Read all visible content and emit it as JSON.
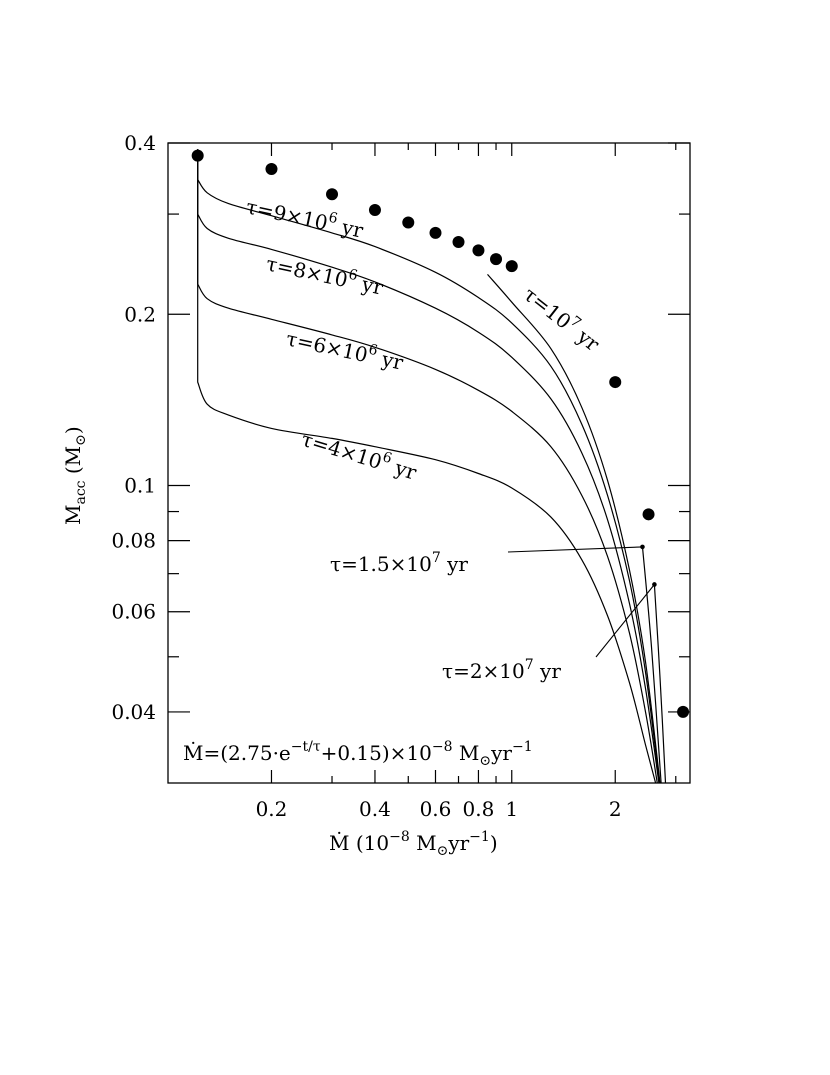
{
  "chart_data": {
    "type": "line",
    "xscale": "log",
    "yscale": "log",
    "xlim": [
      0.1,
      3.3
    ],
    "ylim": [
      0.03,
      0.4
    ],
    "xlabel": {
      "main": "Ṁ  (10",
      "exp": "−8",
      "mid": " M",
      "sub": "⊙",
      "yr": "yr",
      "exp2": "−1",
      "close": ")"
    },
    "ylabel": {
      "main": "M",
      "sub": "acc",
      "unit": "  (M",
      "unit_sub": "⊙",
      "close": ")"
    },
    "x_tick_labels": [
      {
        "value": 0.2,
        "label": "0.2"
      },
      {
        "value": 0.4,
        "label": "0.4"
      },
      {
        "value": 0.6,
        "label": "0.6"
      },
      {
        "value": 0.8,
        "label": "0.8"
      },
      {
        "value": 1,
        "label": "1"
      },
      {
        "value": 2,
        "label": "2"
      }
    ],
    "x_minor_ticks": [
      0.3,
      0.5,
      0.7,
      0.9,
      3
    ],
    "y_tick_labels": [
      {
        "value": 0.4,
        "label": "0.4"
      },
      {
        "value": 0.2,
        "label": "0.2"
      },
      {
        "value": 0.1,
        "label": "0.1"
      },
      {
        "value": 0.08,
        "label": "0.08"
      },
      {
        "value": 0.06,
        "label": "0.06"
      },
      {
        "value": 0.04,
        "label": "0.04"
      }
    ],
    "y_minor_ticks": [
      0.3,
      0.09,
      0.07,
      0.05
    ],
    "formula": {
      "pre": "Ṁ=(2.75·e",
      "exp": "−t/τ",
      "post": "+0.15)×10",
      "exp2": "−8",
      "unit": " M",
      "unit_sub": "⊙",
      "yr": "yr",
      "exp3": "−1"
    },
    "points": [
      {
        "x": 0.122,
        "y": 0.38
      },
      {
        "x": 0.2,
        "y": 0.36
      },
      {
        "x": 0.3,
        "y": 0.325
      },
      {
        "x": 0.4,
        "y": 0.305
      },
      {
        "x": 0.5,
        "y": 0.29
      },
      {
        "x": 0.6,
        "y": 0.278
      },
      {
        "x": 0.7,
        "y": 0.268
      },
      {
        "x": 0.8,
        "y": 0.259
      },
      {
        "x": 0.9,
        "y": 0.25
      },
      {
        "x": 1.0,
        "y": 0.243
      },
      {
        "x": 2.0,
        "y": 0.152
      },
      {
        "x": 2.5,
        "y": 0.089
      },
      {
        "x": 3.15,
        "y": 0.04
      }
    ],
    "series": [
      {
        "tau": "τ=4×10⁶ yr",
        "x": [
          0.122,
          0.122,
          0.13,
          0.15,
          0.2,
          0.3,
          0.4,
          0.6,
          0.8,
          1.0,
          1.3,
          1.6,
          1.9,
          2.2,
          2.45,
          2.62
        ],
        "y": [
          0.39,
          0.152,
          0.139,
          0.133,
          0.126,
          0.121,
          0.117,
          0.111,
          0.105,
          0.099,
          0.088,
          0.074,
          0.059,
          0.045,
          0.035,
          0.03
        ]
      },
      {
        "tau": "τ=6×10⁶ yr",
        "x": [
          0.122,
          0.122,
          0.13,
          0.15,
          0.2,
          0.3,
          0.4,
          0.6,
          0.8,
          1.0,
          1.3,
          1.6,
          1.9,
          2.2,
          2.45,
          2.65
        ],
        "y": [
          0.39,
          0.226,
          0.213,
          0.205,
          0.196,
          0.184,
          0.175,
          0.16,
          0.147,
          0.135,
          0.117,
          0.096,
          0.075,
          0.055,
          0.04,
          0.03
        ]
      },
      {
        "tau": "τ=8×10⁶ yr",
        "x": [
          0.122,
          0.122,
          0.13,
          0.15,
          0.2,
          0.3,
          0.4,
          0.6,
          0.8,
          1.0,
          1.3,
          1.6,
          1.9,
          2.2,
          2.45,
          2.68
        ],
        "y": [
          0.39,
          0.3,
          0.283,
          0.272,
          0.26,
          0.242,
          0.228,
          0.205,
          0.186,
          0.168,
          0.142,
          0.114,
          0.087,
          0.062,
          0.044,
          0.03
        ]
      },
      {
        "tau": "τ=9×10⁶ yr",
        "x": [
          0.122,
          0.122,
          0.13,
          0.15,
          0.2,
          0.3,
          0.4,
          0.6,
          0.8,
          1.0,
          1.3,
          1.6,
          1.9,
          2.2,
          2.45,
          2.69
        ],
        "y": [
          0.39,
          0.345,
          0.327,
          0.313,
          0.298,
          0.278,
          0.263,
          0.237,
          0.214,
          0.193,
          0.162,
          0.128,
          0.096,
          0.068,
          0.047,
          0.03
        ]
      },
      {
        "tau": "τ=10⁷ yr",
        "x": [
          0.85,
          1.0,
          1.3,
          1.6,
          1.9,
          2.2,
          2.45,
          2.7
        ],
        "y": [
          0.235,
          0.21,
          0.174,
          0.137,
          0.102,
          0.071,
          0.049,
          0.03
        ]
      },
      {
        "tau": "τ=1.5×10⁷ yr",
        "x": [
          2.4,
          2.55,
          2.72
        ],
        "y": [
          0.078,
          0.052,
          0.03
        ]
      },
      {
        "tau": "τ=2×10⁷ yr",
        "x": [
          2.6,
          2.7,
          2.8
        ],
        "y": [
          0.067,
          0.046,
          0.03
        ]
      }
    ],
    "curve_labels": [
      {
        "pre": "τ=9×10",
        "exp": "6",
        "post": " yr",
        "rotate": 12
      },
      {
        "pre": "τ=8×10",
        "exp": "6",
        "post": " yr",
        "rotate": 12
      },
      {
        "pre": "τ=6×10",
        "exp": "6",
        "post": " yr",
        "rotate": 12
      },
      {
        "pre": "τ=4×10",
        "exp": "6",
        "post": " yr",
        "rotate": 17
      },
      {
        "pre": "τ=10",
        "exp": "7",
        "post": " yr",
        "rotate": 38
      },
      {
        "pre": "τ=1.5×10",
        "exp": "7",
        "post": " yr",
        "rotate": 0
      },
      {
        "pre": "τ=2×10",
        "exp": "7",
        "post": " yr",
        "rotate": 0
      }
    ]
  }
}
